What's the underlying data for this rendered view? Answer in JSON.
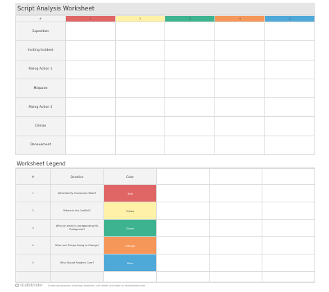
{
  "worksheet": {
    "title": "Script Analysis Worksheet",
    "columns": [
      {
        "label": "#",
        "color": "#f3f3f3"
      },
      {
        "label": "1",
        "color": "#e06666"
      },
      {
        "label": "2",
        "color": "#fff2a8"
      },
      {
        "label": "3",
        "color": "#3eb38f"
      },
      {
        "label": "4",
        "color": "#f6975a"
      },
      {
        "label": "5",
        "color": "#4ea8d8"
      }
    ],
    "rows": [
      "Exposition",
      "Inciting Incident",
      "Rising Action 1",
      "Midpoint",
      "Rising Action 2",
      "Climax",
      "Denouement"
    ]
  },
  "legend": {
    "title": "Worksheet Legend",
    "headers": {
      "num": "#",
      "question": "Question",
      "color": "Color"
    },
    "rows": [
      {
        "num": "1",
        "question": "What Do My Characters Want?",
        "color_name": "Red",
        "color": "#e06666"
      },
      {
        "num": "2",
        "question": "Where is the Conflict?",
        "color_name": "Yellow",
        "color": "#fff2a8"
      },
      {
        "num": "3",
        "question": "Who (or what) is Antagonizing My Protagonist?",
        "color_name": "Green",
        "color": "#3eb38f"
      },
      {
        "num": "4",
        "question": "When are Things Going to Change?",
        "color_name": "Orange",
        "color": "#f6975a"
      },
      {
        "num": "5",
        "question": "Why Should Readers Care?",
        "color_name": "Blue",
        "color": "#4ea8d8"
      }
    ]
  },
  "footer": {
    "logo": "studiobinder",
    "text": "Create storyboards, shooting schedules, call sheets and more on studiobinder.com"
  }
}
